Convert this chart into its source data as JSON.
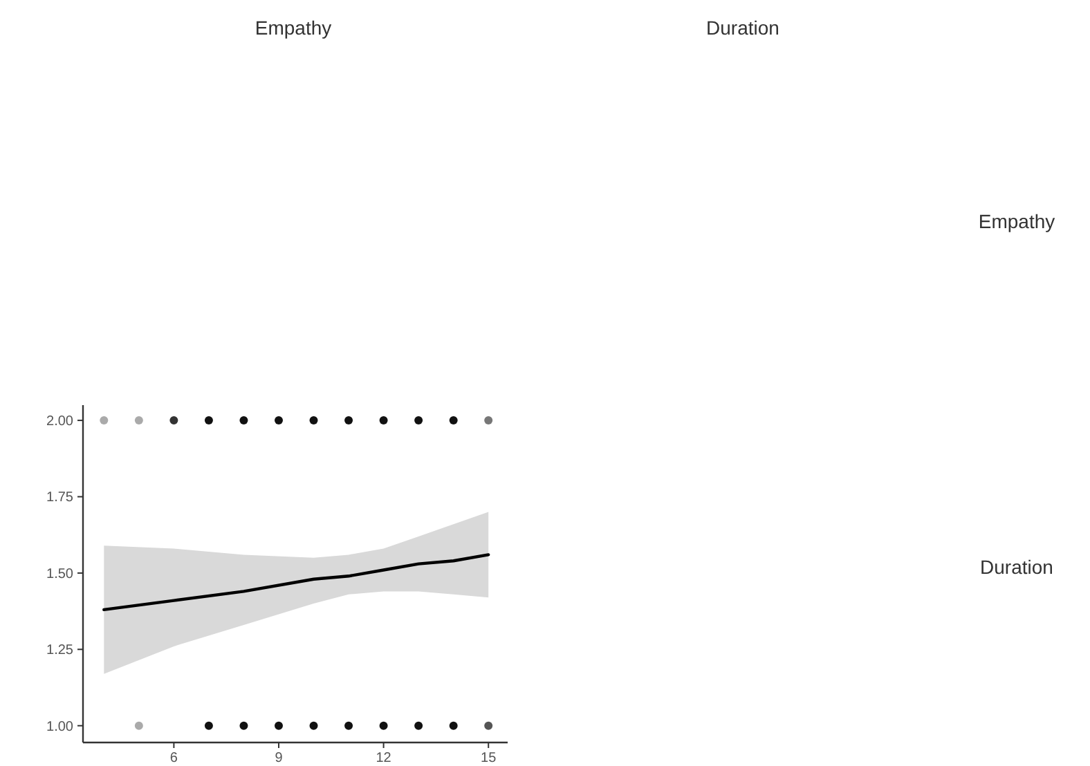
{
  "chart_data": {
    "type": "scatter",
    "annotations": [
      "Empathy",
      "Duration",
      "Empathy",
      "Duration"
    ],
    "xlim": [
      3.4,
      15.55
    ],
    "xticks": [
      6,
      9,
      12,
      15
    ],
    "ylim": [
      0.945,
      2.05
    ],
    "yticks": [
      {
        "value": 1,
        "label": "1.00"
      },
      {
        "value": 1.25,
        "label": "1.25"
      },
      {
        "value": 1.5,
        "label": "1.50"
      },
      {
        "value": 1.75,
        "label": "1.75"
      },
      {
        "value": 2,
        "label": "2.00"
      }
    ],
    "grid": false,
    "series": [
      {
        "marker": "circle",
        "x": [
          4,
          5,
          6,
          7,
          8,
          9,
          10,
          11,
          12,
          13,
          14,
          15,
          5,
          7,
          8,
          9,
          10,
          11,
          12,
          13,
          14,
          15
        ],
        "values": [
          2,
          2,
          2,
          2,
          2,
          2,
          2,
          2,
          2,
          2,
          2,
          2,
          1,
          1,
          1,
          1,
          1,
          1,
          1,
          1,
          1,
          1
        ],
        "colors": [
          "#aaaaaa",
          "#aaaaaa",
          "#333333",
          "#111111",
          "#111111",
          "#111111",
          "#111111",
          "#111111",
          "#111111",
          "#111111",
          "#111111",
          "#777777",
          "#aaaaaa",
          "#111111",
          "#111111",
          "#111111",
          "#111111",
          "#111111",
          "#111111",
          "#111111",
          "#111111",
          "#555555"
        ]
      },
      {
        "type": "line",
        "color": "#000000",
        "x": [
          4,
          6,
          8,
          10,
          11,
          12,
          13,
          14,
          15
        ],
        "values": [
          1.38,
          1.41,
          1.44,
          1.48,
          1.49,
          1.51,
          1.53,
          1.54,
          1.56
        ],
        "lower": [
          1.17,
          1.26,
          1.33,
          1.4,
          1.43,
          1.44,
          1.44,
          1.43,
          1.42
        ],
        "upper": [
          1.59,
          1.58,
          1.56,
          1.55,
          1.56,
          1.58,
          1.62,
          1.66,
          1.7
        ],
        "marker": "none"
      }
    ]
  }
}
